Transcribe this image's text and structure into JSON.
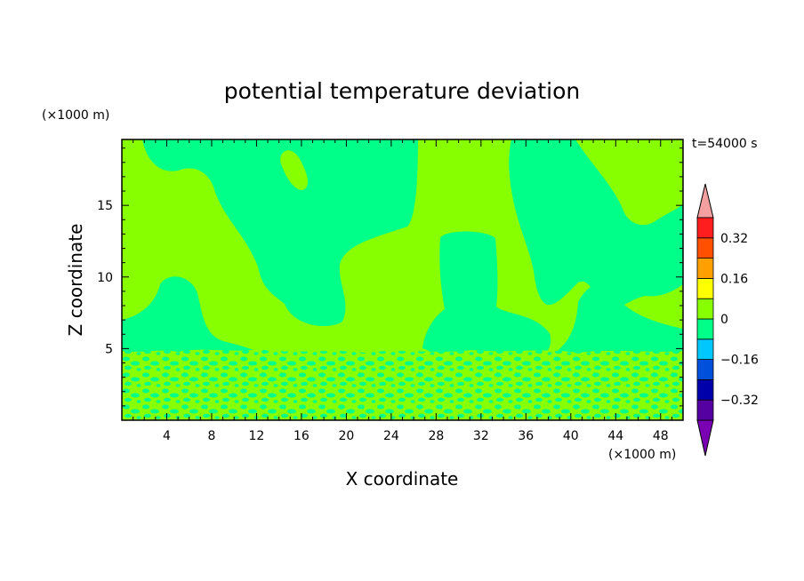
{
  "chart_data": {
    "type": "heatmap",
    "title": "potential temperature deviation",
    "xlabel": "X coordinate",
    "ylabel": "Z coordinate",
    "x_unit": "(×1000 m)",
    "y_unit": "(×1000 m)",
    "time_label": "t=54000 s",
    "xlim": [
      0,
      50
    ],
    "ylim": [
      0,
      19.6
    ],
    "x_ticks": [
      4,
      8,
      12,
      16,
      20,
      24,
      28,
      32,
      36,
      40,
      44,
      48
    ],
    "y_ticks": [
      5,
      10,
      15
    ],
    "colorbar": {
      "levels": [
        -0.4,
        -0.32,
        -0.24,
        -0.16,
        -0.08,
        0,
        0.08,
        0.16,
        0.24,
        0.32,
        0.4
      ],
      "colors": [
        "#5500a0",
        "#0000aa",
        "#0050dc",
        "#00c8ff",
        "#00ff88",
        "#88ff00",
        "#ffff00",
        "#ffa000",
        "#ff5000",
        "#ff1e1e"
      ],
      "under_color": "#7a00b4",
      "over_color": "#f4a0a0",
      "labels": [
        "0.32",
        "0.16",
        "0",
        "−0.16",
        "−0.32"
      ],
      "label_values": [
        0.32,
        0.16,
        0,
        -0.16,
        -0.32
      ]
    },
    "regions": [
      {
        "level": "0 to 0.08",
        "color": "#88ff00",
        "description": "background field"
      },
      {
        "level": "-0.08 to 0",
        "color": "#00ff88",
        "description": "negative deviation patches"
      }
    ]
  }
}
